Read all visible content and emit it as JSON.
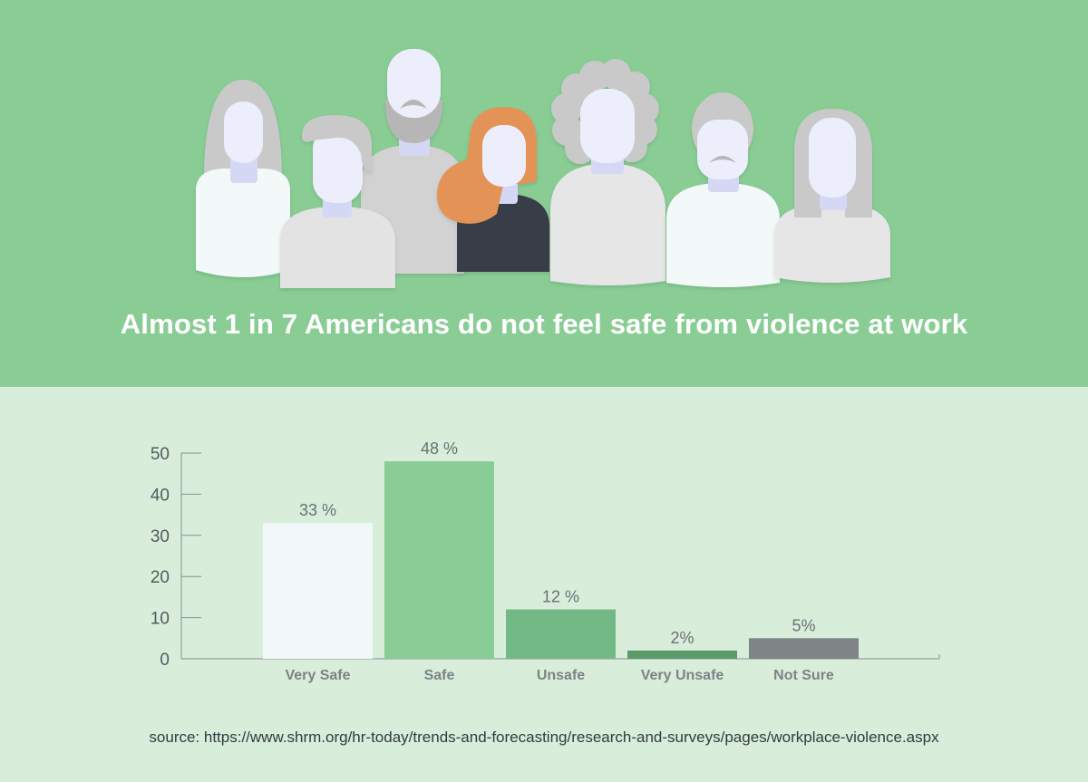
{
  "header": {
    "title": "Almost 1 in 7 Americans do not feel safe from violence at work",
    "illustration_icon": "people-group-icon",
    "background_color": "#89cd95"
  },
  "chart_data": {
    "type": "bar",
    "title": "",
    "xlabel": "",
    "ylabel": "",
    "categories": [
      "Very Safe",
      "Safe",
      "Unsafe",
      "Very Unsafe",
      "Not Sure"
    ],
    "values": [
      33,
      48,
      12,
      2,
      5
    ],
    "value_labels": [
      "33 %",
      "48 %",
      "12 %",
      "2%",
      "5%"
    ],
    "colors": [
      "#f3f9f9",
      "#89cd95",
      "#72b986",
      "#5d9a69",
      "#7f8487"
    ],
    "yticks": [
      0,
      10,
      20,
      30,
      40,
      50
    ],
    "ylim": [
      0,
      50
    ],
    "grid": false
  },
  "footer": {
    "source": "source: https://www.shrm.org/hr-today/trends-and-forecasting/research-and-surveys/pages/workplace-violence.aspx"
  }
}
